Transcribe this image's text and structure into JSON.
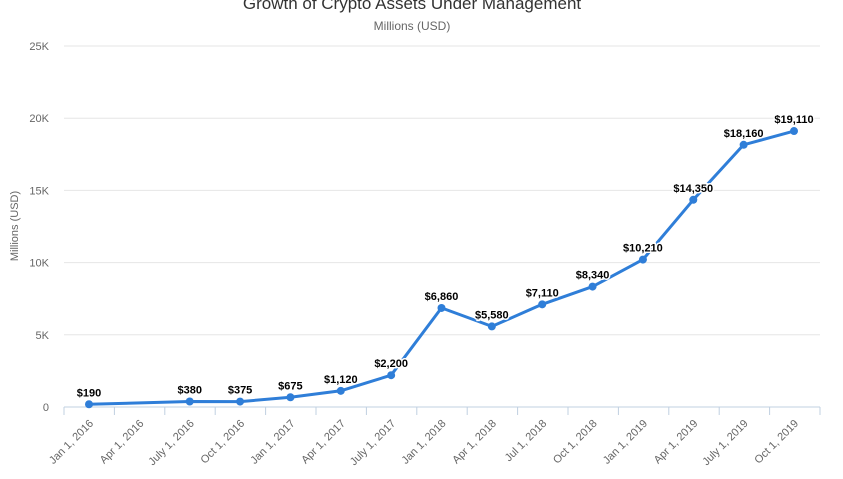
{
  "chart_data": {
    "type": "line",
    "title": "Growth of Crypto Assets Under Management",
    "subtitle": "Millions (USD)",
    "xlabel": "",
    "ylabel": "Millions (USD)",
    "categories": [
      "Jan 1, 2016",
      "Apr 1, 2016",
      "July 1, 2016",
      "Oct 1, 2016",
      "Jan 1, 2017",
      "Apr 1, 2017",
      "July 1, 2017",
      "Jan 1, 2018",
      "Apr 1, 2018",
      "Jul 1, 2018",
      "Oct 1, 2018",
      "Jan 1, 2019",
      "Apr 1, 2019",
      "July 1, 2019",
      "Oct 1, 2019"
    ],
    "series": [
      {
        "name": "",
        "color": "#2f7ed8",
        "points": [
          {
            "x": "Jan 1, 2016",
            "y": 190,
            "label": "$190"
          },
          {
            "x": "July 1, 2016",
            "y": 380,
            "label": "$380"
          },
          {
            "x": "Oct 1, 2016",
            "y": 375,
            "label": "$375"
          },
          {
            "x": "Jan 1, 2017",
            "y": 675,
            "label": "$675"
          },
          {
            "x": "Apr 1, 2017",
            "y": 1120,
            "label": "$1,120"
          },
          {
            "x": "July 1, 2017",
            "y": 2200,
            "label": "$2,200"
          },
          {
            "x": "Jan 1, 2018",
            "y": 6860,
            "label": "$6,860"
          },
          {
            "x": "Apr 1, 2018",
            "y": 5580,
            "label": "$5,580"
          },
          {
            "x": "Jul 1, 2018",
            "y": 7110,
            "label": "$7,110"
          },
          {
            "x": "Oct 1, 2018",
            "y": 8340,
            "label": "$8,340"
          },
          {
            "x": "Jan 1, 2019",
            "y": 10210,
            "label": "$10,210"
          },
          {
            "x": "Apr 1, 2019",
            "y": 14350,
            "label": "$14,350"
          },
          {
            "x": "July 1, 2019",
            "y": 18160,
            "label": "$18,160"
          },
          {
            "x": "Oct 1, 2019",
            "y": 19110,
            "label": "$19,110"
          }
        ]
      }
    ],
    "y_ticks": [
      {
        "value": 0,
        "label": "0"
      },
      {
        "value": 5000,
        "label": "5K"
      },
      {
        "value": 10000,
        "label": "10K"
      },
      {
        "value": 15000,
        "label": "15K"
      },
      {
        "value": 20000,
        "label": "20K"
      },
      {
        "value": 25000,
        "label": "25K"
      }
    ],
    "ylim": [
      0,
      25000
    ],
    "grid": true,
    "legend": "none"
  }
}
